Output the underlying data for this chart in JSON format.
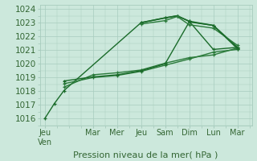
{
  "xlabel": "Pression niveau de la mer( hPa )",
  "ylim": [
    1015.5,
    1024.3
  ],
  "yticks": [
    1016,
    1017,
    1018,
    1019,
    1020,
    1021,
    1022,
    1023,
    1024
  ],
  "xtick_labels": [
    "Jeu\nVen",
    "Mar",
    "Mer",
    "Jeu",
    "Sam",
    "Dim",
    "Lun",
    "Mar"
  ],
  "xtick_positions": [
    0,
    2,
    3,
    4,
    5,
    6,
    7,
    8
  ],
  "xlim": [
    -0.2,
    8.6
  ],
  "background_color": "#cce8dc",
  "grid_color": "#a8ccbe",
  "series": [
    {
      "x": [
        0,
        0.4,
        0.8,
        4,
        5,
        5.5,
        6,
        7,
        8
      ],
      "y": [
        1016.0,
        1017.1,
        1018.05,
        1023.0,
        1023.35,
        1023.5,
        1023.1,
        1021.05,
        1021.2
      ],
      "color": "#1a6b2a",
      "lw": 1.0,
      "marker": "+"
    },
    {
      "x": [
        0.8,
        2,
        3,
        4,
        5,
        6,
        7,
        8
      ],
      "y": [
        1018.3,
        1019.2,
        1019.35,
        1019.55,
        1020.05,
        1020.45,
        1020.65,
        1021.15
      ],
      "color": "#2a7a3a",
      "lw": 1.0,
      "marker": "+"
    },
    {
      "x": [
        0.8,
        2,
        3,
        4,
        5,
        6,
        7,
        8
      ],
      "y": [
        1018.55,
        1019.0,
        1019.15,
        1019.45,
        1019.9,
        1020.35,
        1020.85,
        1021.05
      ],
      "color": "#2a7a3a",
      "lw": 1.0,
      "marker": "+"
    },
    {
      "x": [
        0.8,
        2,
        3,
        4,
        5,
        6
      ],
      "y": [
        1018.75,
        1019.05,
        1019.2,
        1019.5,
        1020.0,
        1023.05
      ],
      "color": "#1a6b2a",
      "lw": 1.0,
      "marker": "+"
    },
    {
      "x": [
        4,
        5,
        5.5,
        6,
        7,
        8
      ],
      "y": [
        1023.0,
        1023.35,
        1023.5,
        1023.1,
        1022.8,
        1021.2
      ],
      "color": "#1a6b2a",
      "lw": 1.2,
      "marker": "+"
    },
    {
      "x": [
        4,
        5,
        5.5,
        6,
        7,
        8
      ],
      "y": [
        1022.9,
        1023.15,
        1023.45,
        1022.85,
        1022.6,
        1021.35
      ],
      "color": "#2a7a3a",
      "lw": 1.0,
      "marker": "+"
    },
    {
      "x": [
        6,
        7,
        8
      ],
      "y": [
        1023.05,
        1022.8,
        1021.1
      ],
      "color": "#1a6b2a",
      "lw": 1.0,
      "marker": "+"
    }
  ],
  "marker_size": 3,
  "font_color": "#336633",
  "font_size": 7.5
}
